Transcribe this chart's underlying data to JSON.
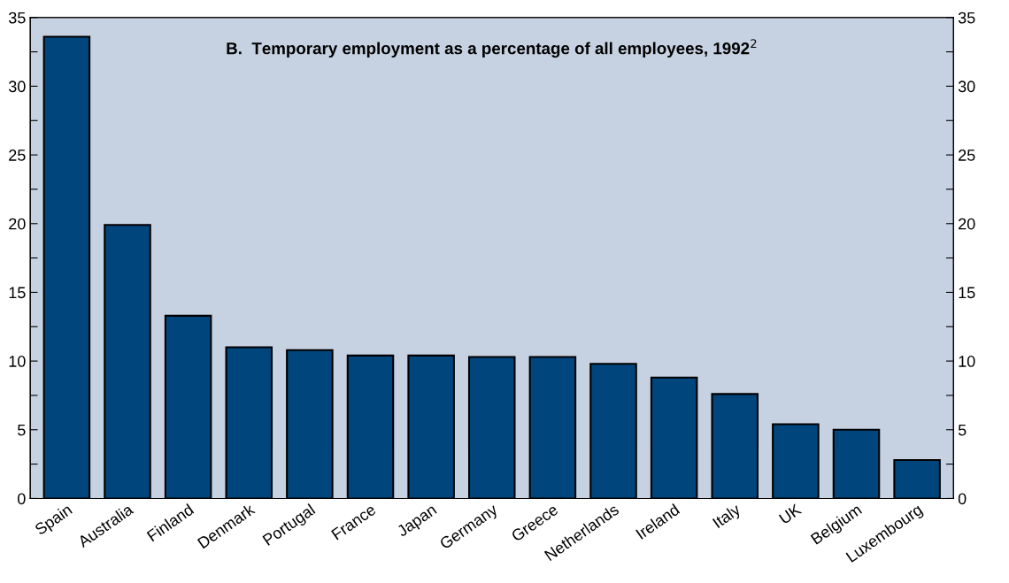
{
  "chart_data": {
    "type": "bar",
    "title": "B.  Temporary employment as a percentage of all employees, 1992$^{2}$",
    "categories": [
      "Spain",
      "Australia",
      "Finland",
      "Denmark",
      "Portugal",
      "France",
      "Japan",
      "Germany",
      "Greece",
      "Netherlands",
      "Ireland",
      "Italy",
      "UK",
      "Belgium",
      "Luxembourg"
    ],
    "values": [
      33.6,
      19.9,
      13.3,
      11.0,
      10.8,
      10.4,
      10.4,
      10.3,
      10.3,
      9.8,
      8.8,
      7.6,
      5.4,
      5.0,
      2.8
    ],
    "color": "#00457c",
    "ylim": [
      0,
      35
    ],
    "yticks": [
      0,
      {
        "value": 2.5,
        "label": null
      },
      5,
      {
        "value": 7.5,
        "label": null
      },
      10,
      {
        "value": 12.5,
        "label": null
      },
      15,
      {
        "value": 17.5,
        "label": null
      },
      20,
      {
        "value": 22.5,
        "label": null
      },
      25,
      {
        "value": 27.5,
        "label": null
      },
      30,
      {
        "value": 32.5,
        "label": null
      },
      35
    ],
    "y2lim": [
      0,
      35
    ],
    "y2ticks": [
      0,
      {
        "value": 2.5,
        "label": null
      },
      5,
      {
        "value": 7.5,
        "label": null
      },
      10,
      {
        "value": 12.5,
        "label": null
      },
      15,
      {
        "value": 17.5,
        "label": null
      },
      20,
      {
        "value": 22.5,
        "label": null
      },
      25,
      {
        "value": 27.5,
        "label": null
      },
      30,
      {
        "value": 32.5,
        "label": null
      },
      35
    ],
    "grid": false,
    "legend": false
  }
}
